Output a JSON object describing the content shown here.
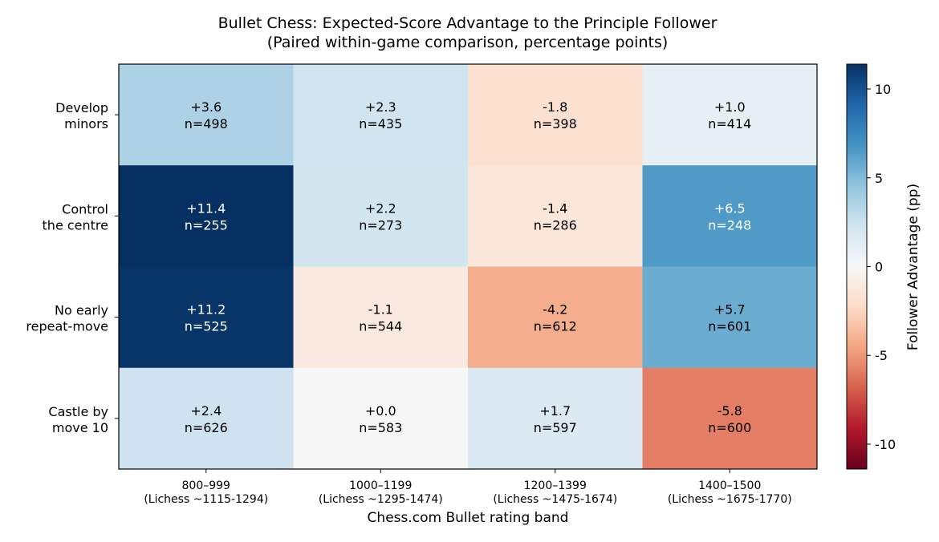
{
  "chart_data": {
    "type": "heatmap",
    "title": "Bullet Chess: Expected-Score Advantage to the Principle Follower",
    "subtitle": "(Paired within-game comparison, percentage points)",
    "xlabel": "Chess.com Bullet rating band",
    "ylabel": "",
    "x_categories": [
      {
        "line1": "800–999",
        "line2": "(Lichess ~1115-1294)"
      },
      {
        "line1": "1000–1199",
        "line2": "(Lichess ~1295-1474)"
      },
      {
        "line1": "1200–1399",
        "line2": "(Lichess ~1475-1674)"
      },
      {
        "line1": "1400–1500",
        "line2": "(Lichess ~1675-1770)"
      }
    ],
    "y_categories": [
      {
        "line1": "Develop",
        "line2": "minors"
      },
      {
        "line1": "Control",
        "line2": "the centre"
      },
      {
        "line1": "No early",
        "line2": "repeat-move"
      },
      {
        "line1": "Castle by",
        "line2": "move 10"
      }
    ],
    "values": [
      [
        3.6,
        2.3,
        -1.8,
        1.0
      ],
      [
        11.4,
        2.2,
        -1.4,
        6.5
      ],
      [
        11.2,
        -1.1,
        -4.2,
        5.7
      ],
      [
        2.4,
        0.0,
        1.7,
        -5.8
      ]
    ],
    "cell_labels": [
      [
        {
          "value": "+3.6",
          "n": "n=498"
        },
        {
          "value": "+2.3",
          "n": "n=435"
        },
        {
          "value": "-1.8",
          "n": "n=398"
        },
        {
          "value": "+1.0",
          "n": "n=414"
        }
      ],
      [
        {
          "value": "+11.4",
          "n": "n=255"
        },
        {
          "value": "+2.2",
          "n": "n=273"
        },
        {
          "value": "-1.4",
          "n": "n=286"
        },
        {
          "value": "+6.5",
          "n": "n=248"
        }
      ],
      [
        {
          "value": "+11.2",
          "n": "n=525"
        },
        {
          "value": "-1.1",
          "n": "n=544"
        },
        {
          "value": "-4.2",
          "n": "n=612"
        },
        {
          "value": "+5.7",
          "n": "n=601"
        }
      ],
      [
        {
          "value": "+2.4",
          "n": "n=626"
        },
        {
          "value": "+0.0",
          "n": "n=583"
        },
        {
          "value": "+1.7",
          "n": "n=597"
        },
        {
          "value": "-5.8",
          "n": "n=600"
        }
      ]
    ],
    "colorbar": {
      "label": "Follower Advantage (pp)",
      "range": [
        -11.4,
        11.4
      ],
      "ticks": [
        10,
        5,
        0,
        -5,
        -10
      ],
      "tick_labels": [
        "10",
        "5",
        "0",
        "-5",
        "-10"
      ],
      "colormap": "RdBu"
    },
    "text_colors": {
      "dark": "#000000",
      "light": "#ffffff"
    }
  }
}
